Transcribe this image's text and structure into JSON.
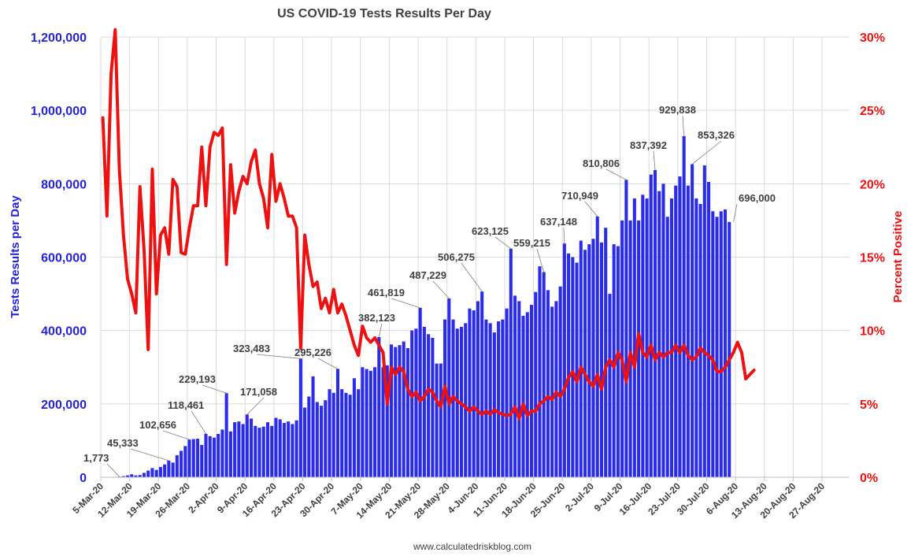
{
  "chart_data": {
    "type": "bar",
    "title": "US COVID-19 Tests Results Per Day",
    "source": "www.calculatedriskblog.com",
    "x_axis": {
      "tick_labels": [
        "5-Mar-20",
        "12-Mar-20",
        "19-Mar-20",
        "26-Mar-20",
        "2-Apr-20",
        "9-Apr-20",
        "16-Apr-20",
        "23-Apr-20",
        "30-Apr-20",
        "7-May-20",
        "14-May-20",
        "21-May-20",
        "28-May-20",
        "4-Jun-20",
        "11-Jun-20",
        "18-Jun-20",
        "25-Jun-20",
        "2-Jul-20",
        "9-Jul-20",
        "16-Jul-20",
        "23-Jul-20",
        "30-Jul-20",
        "6-Aug-20",
        "13-Aug-20",
        "20-Aug-20",
        "27-Aug-20"
      ],
      "range": [
        "2020-03-05",
        "2020-08-27"
      ]
    },
    "y_left": {
      "label": "Tests Results per Day",
      "range": [
        0,
        1200000
      ],
      "tick_labels": [
        "0",
        "200,000",
        "400,000",
        "600,000",
        "800,000",
        "1,000,000",
        "1,200,000"
      ],
      "color": "#2323d8"
    },
    "y_right": {
      "label": "Percent Positive",
      "range": [
        0,
        30
      ],
      "tick_labels": [
        "0%",
        "5%",
        "10%",
        "15%",
        "20%",
        "25%",
        "30%"
      ],
      "color": "#ee1111"
    },
    "grid": true,
    "bar_start_date": "2020-03-05",
    "series": [
      {
        "name": "Tests Results per Day",
        "type": "bar",
        "color": "#2b2bea",
        "values": [
          0,
          0,
          0,
          0,
          1773,
          3000,
          5000,
          8000,
          5000,
          6000,
          12000,
          18000,
          25000,
          20000,
          28000,
          35000,
          45333,
          40000,
          60000,
          72000,
          85000,
          102656,
          104000,
          105000,
          88000,
          118461,
          112000,
          108000,
          118000,
          130000,
          229193,
          125000,
          150000,
          152000,
          145000,
          171058,
          160000,
          140000,
          135000,
          138000,
          150000,
          140000,
          162000,
          158000,
          148000,
          152000,
          145000,
          155000,
          323483,
          190000,
          220000,
          275000,
          205000,
          195000,
          210000,
          240000,
          230000,
          295226,
          240000,
          230000,
          225000,
          270000,
          240000,
          300000,
          295000,
          290000,
          300000,
          382123,
          300000,
          305000,
          362000,
          355000,
          360000,
          370000,
          352000,
          400000,
          405000,
          461819,
          410000,
          390000,
          380000,
          310000,
          310000,
          430000,
          487229,
          430000,
          405000,
          410000,
          420000,
          460000,
          455000,
          480000,
          506275,
          430000,
          420000,
          395000,
          425000,
          430000,
          460000,
          623125,
          495000,
          480000,
          440000,
          450000,
          470000,
          505000,
          575000,
          559215,
          510000,
          465000,
          480000,
          520000,
          637148,
          610000,
          600000,
          585000,
          645000,
          620000,
          635000,
          650000,
          710949,
          640000,
          680000,
          500000,
          635000,
          630000,
          700000,
          810806,
          700000,
          760000,
          700000,
          770000,
          760000,
          825000,
          837392,
          780000,
          800000,
          710000,
          760000,
          795000,
          820000,
          929838,
          795000,
          853326,
          760000,
          745000,
          850000,
          805000,
          725000,
          710000,
          725000,
          730000,
          696000
        ]
      },
      {
        "name": "Percent Positive",
        "type": "line",
        "color": "#ee1111",
        "values": [
          24.5,
          17.8,
          27.5,
          30.5,
          21.0,
          16.5,
          13.5,
          12.5,
          11.2,
          19.8,
          15.5,
          8.7,
          21.0,
          12.5,
          16.5,
          17.0,
          15.2,
          20.3,
          19.8,
          15.3,
          15.2,
          17.0,
          18.5,
          18.5,
          22.5,
          18.5,
          22.5,
          23.5,
          23.3,
          23.8,
          14.5,
          21.3,
          18.0,
          19.5,
          20.5,
          20.0,
          21.5,
          22.3,
          20.0,
          19.0,
          17.0,
          22.0,
          18.8,
          20.0,
          19.0,
          17.8,
          17.8,
          17.0,
          8.8,
          16.5,
          14.5,
          13.0,
          13.3,
          11.5,
          12.2,
          11.2,
          12.8,
          11.2,
          11.8,
          11.0,
          10.0,
          9.0,
          8.3,
          10.3,
          9.5,
          9.2,
          9.5,
          9.0,
          8.5,
          5.0,
          7.5,
          7.0,
          7.5,
          7.2,
          6.0,
          5.5,
          5.8,
          5.2,
          5.5,
          6.0,
          5.8,
          5.2,
          4.8,
          6.2,
          5.0,
          5.5,
          5.2,
          5.0,
          4.8,
          4.5,
          4.8,
          4.5,
          4.3,
          4.5,
          4.3,
          4.6,
          4.4,
          4.3,
          4.2,
          4.3,
          4.8,
          4.0,
          5.0,
          4.2,
          4.5,
          4.5,
          5.0,
          5.2,
          5.5,
          5.3,
          5.8,
          5.5,
          6.0,
          6.8,
          7.2,
          6.5,
          7.5,
          7.0,
          6.5,
          6.2,
          7.0,
          6.0,
          7.5,
          8.0,
          7.5,
          8.5,
          8.0,
          6.5,
          8.5,
          7.5,
          9.8,
          8.5,
          8.2,
          9.0,
          8.0,
          8.5,
          8.2,
          8.5,
          8.5,
          9.0,
          8.5,
          9.0,
          8.3,
          8.0,
          8.2,
          8.8,
          8.5,
          8.3,
          8.0,
          7.2,
          7.2,
          7.5,
          8.0,
          8.5,
          9.2,
          8.5,
          6.7,
          7.0,
          7.3
        ]
      }
    ],
    "annotations": [
      {
        "label": "1,773",
        "day": 4,
        "value": 1773
      },
      {
        "label": "45,333",
        "day": 16,
        "value": 45333
      },
      {
        "label": "102,656",
        "day": 21,
        "value": 102656
      },
      {
        "label": "118,461",
        "day": 25,
        "value": 118461
      },
      {
        "label": "229,193",
        "day": 30,
        "value": 229193
      },
      {
        "label": "171,058",
        "day": 35,
        "value": 171058
      },
      {
        "label": "323,483",
        "day": 48,
        "value": 323483
      },
      {
        "label": "295,226",
        "day": 57,
        "value": 295226
      },
      {
        "label": "382,123",
        "day": 67,
        "value": 382123
      },
      {
        "label": "461,819",
        "day": 77,
        "value": 461819
      },
      {
        "label": "487,229",
        "day": 84,
        "value": 487229
      },
      {
        "label": "506,275",
        "day": 92,
        "value": 506275
      },
      {
        "label": "623,125",
        "day": 99,
        "value": 623125
      },
      {
        "label": "559,215",
        "day": 107,
        "value": 559215
      },
      {
        "label": "637,148",
        "day": 112,
        "value": 637148
      },
      {
        "label": "710,949",
        "day": 120,
        "value": 710949
      },
      {
        "label": "810,806",
        "day": 127,
        "value": 810806
      },
      {
        "label": "837,392",
        "day": 134,
        "value": 837392
      },
      {
        "label": "929,838",
        "day": 141,
        "value": 929838
      },
      {
        "label": "853,326",
        "day": 143,
        "value": 853326
      },
      {
        "label": "696,000",
        "day": 153,
        "value": 696000
      }
    ]
  }
}
